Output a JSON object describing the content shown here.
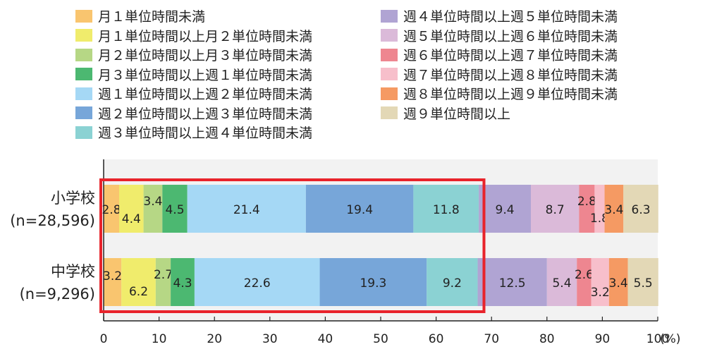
{
  "chart_data": {
    "type": "bar",
    "orientation": "horizontal",
    "stacked": true,
    "categories": [
      "小学校\n(n=28,596)",
      "中学校\n(n=9,296)"
    ],
    "category_lines": [
      [
        "小学校",
        "(n=28,596)"
      ],
      [
        "中学校",
        "(n=9,296)"
      ]
    ],
    "xlim": [
      0,
      100
    ],
    "xticks": [
      0,
      10,
      20,
      30,
      40,
      50,
      60,
      70,
      80,
      90,
      100
    ],
    "xunit": "(%)",
    "series": [
      {
        "name": "月１単位時間未満",
        "color": "#f9c56f",
        "values": [
          2.8,
          3.2
        ]
      },
      {
        "name": "月１単位時間以上月２単位時間未満",
        "color": "#f0ec6c",
        "values": [
          4.4,
          6.2
        ]
      },
      {
        "name": "月２単位時間以上月３単位時間未満",
        "color": "#b6d785",
        "values": [
          3.4,
          2.7
        ]
      },
      {
        "name": "月３単位時間以上週１単位時間未満",
        "color": "#4cb871",
        "values": [
          4.5,
          4.3
        ]
      },
      {
        "name": "週１単位時間以上週２単位時間未満",
        "color": "#a5d8f5",
        "values": [
          21.4,
          22.6
        ]
      },
      {
        "name": "週２単位時間以上週３単位時間未満",
        "color": "#77a6d9",
        "values": [
          19.4,
          19.3
        ]
      },
      {
        "name": "週３単位時間以上週４単位時間未満",
        "color": "#8bd2d3",
        "values": [
          11.8,
          9.2
        ]
      },
      {
        "name": "週４単位時間以上週５単位時間未満",
        "color": "#b0a4d3",
        "values": [
          9.4,
          12.5
        ]
      },
      {
        "name": "週５単位時間以上週６単位時間未満",
        "color": "#dbbad9",
        "values": [
          8.7,
          5.4
        ]
      },
      {
        "name": "週６単位時間以上週７単位時間未満",
        "color": "#ee8690",
        "values": [
          2.8,
          2.6
        ]
      },
      {
        "name": "週７単位時間以上週８単位時間未満",
        "color": "#f7bfcb",
        "values": [
          1.8,
          3.2
        ]
      },
      {
        "name": "週８単位時間以上週９単位時間未満",
        "color": "#f59a63",
        "values": [
          3.4,
          3.4
        ]
      },
      {
        "name": "週９単位時間以上",
        "color": "#e3d8b6",
        "values": [
          6.3,
          5.5
        ]
      }
    ],
    "labels": [
      [
        "2.8",
        "4.4",
        "3.4",
        "4.5",
        "21.4",
        "19.4",
        "11.8",
        "9.4",
        "8.7",
        "2.8",
        "1.8",
        "3.4",
        "6.3"
      ],
      [
        "3.2",
        "6.2",
        "2.7",
        "4.3",
        "22.6",
        "19.3",
        "9.2",
        "12.5",
        "5.4",
        "2.6",
        "3.2",
        "3.4",
        "5.5"
      ]
    ],
    "legend_position": "top",
    "grid": false,
    "highlight": {
      "color": "#e8232b",
      "x_range": [
        0,
        68
      ]
    }
  }
}
